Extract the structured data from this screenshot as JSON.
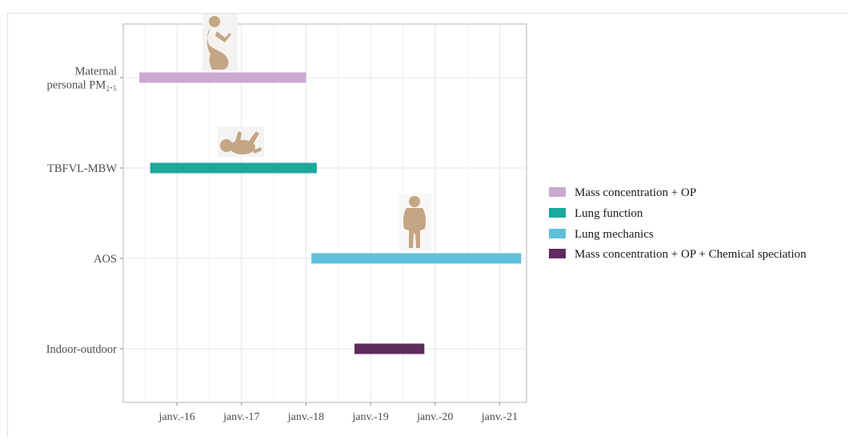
{
  "chart_data": {
    "type": "bar",
    "orientation": "horizontal-timeline",
    "title": "",
    "xlabel": "",
    "ylabel": "",
    "x_ticks": [
      "janv.-16",
      "janv.-17",
      "janv.-18",
      "janv.-19",
      "janv.-20",
      "janv.-21"
    ],
    "x_range": [
      "2015-03",
      "2021-06"
    ],
    "grid": true,
    "legend_position": "right",
    "categories": [
      {
        "label_lines": [
          "Maternal",
          "personal PM₂.₅"
        ],
        "icon": "pregnant-woman-icon"
      },
      {
        "label_lines": [
          "TBFVL-MBW"
        ],
        "icon": "infant-icon"
      },
      {
        "label_lines": [
          "AOS"
        ],
        "icon": "child-icon"
      },
      {
        "label_lines": [
          "Indoor-outdoor"
        ],
        "icon": ""
      }
    ],
    "series": [
      {
        "name": "Mass concentration + OP",
        "color": "#c9a9d0",
        "start": "2015-06",
        "end": "2018-01"
      },
      {
        "name": "Lung function",
        "color": "#1ba99c",
        "start": "2015-08",
        "end": "2018-03"
      },
      {
        "name": "Lung mechanics",
        "color": "#5fc0da",
        "start": "2018-02",
        "end": "2021-05"
      },
      {
        "name": "Mass concentration + OP + Chemical speciation",
        "color": "#5f2a5c",
        "start": "2018-10",
        "end": "2019-11"
      }
    ]
  }
}
